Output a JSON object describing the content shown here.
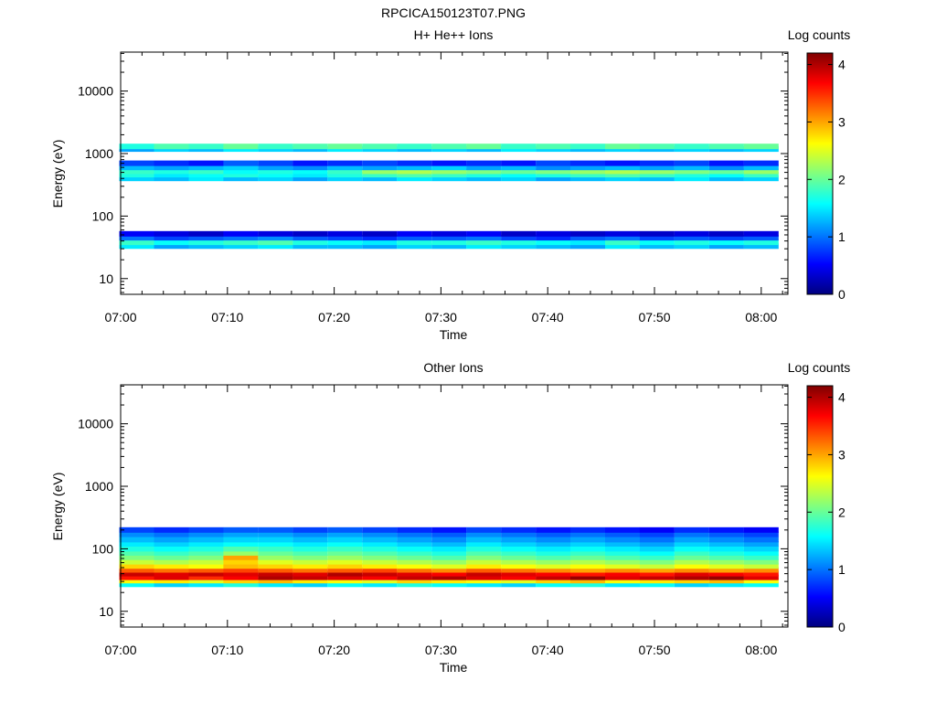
{
  "figure_title": "RPCICA150123T07.PNG",
  "chart_data": [
    {
      "type": "heatmap",
      "title": "H+ He++ Ions",
      "xlabel": "Time",
      "ylabel": "Energy (eV)",
      "colorbar_label": "Log counts",
      "y_scale": "log",
      "ylim": [
        5.6,
        42000
      ],
      "x_range": [
        "07:00:00",
        "08:02:30"
      ],
      "xticks": [
        "07:00",
        "07:10",
        "07:20",
        "07:30",
        "07:40",
        "07:50",
        "08:00"
      ],
      "yticks": [
        10,
        100,
        1000,
        10000
      ],
      "yticklabels": [
        "10",
        "100",
        "1000",
        "10000"
      ],
      "colorbar_range": [
        0,
        4.2
      ],
      "colorbar_ticks": [
        0,
        1,
        2,
        3,
        4
      ],
      "colormap": "jet",
      "time_bins": [
        "07:01:30",
        "07:04:45",
        "07:08:00",
        "07:11:15",
        "07:14:30",
        "07:17:45",
        "07:21:00",
        "07:24:15",
        "07:27:30",
        "07:30:45",
        "07:34:00",
        "07:37:15",
        "07:40:30",
        "07:43:45",
        "07:47:00",
        "07:50:15",
        "07:53:30",
        "07:56:45",
        "08:00:00"
      ],
      "energy_channels": [
        {
          "e": 33,
          "logc": [
            1.5,
            1.2,
            1.3,
            1.4,
            1.5,
            1.3,
            1.3,
            1.2,
            1.4,
            1.3,
            1.5,
            1.4,
            1.3,
            1.2,
            1.5,
            1.3,
            1.4,
            1.2,
            1.3
          ]
        },
        {
          "e": 38,
          "logc": [
            1.8,
            1.6,
            1.7,
            1.8,
            1.9,
            1.7,
            1.6,
            1.5,
            1.7,
            1.7,
            1.8,
            1.7,
            1.6,
            1.5,
            1.8,
            1.6,
            1.7,
            1.6,
            1.7
          ]
        },
        {
          "e": 45,
          "logc": [
            1.0,
            0.8,
            0.9,
            1.0,
            1.1,
            0.9,
            0.8,
            0.7,
            0.9,
            0.9,
            1.0,
            0.8,
            0.7,
            0.9,
            1.0,
            0.8,
            0.9,
            0.8,
            0.9
          ]
        },
        {
          "e": 52,
          "logc": [
            0.5,
            0.4,
            0.3,
            0.5,
            0.4,
            0.3,
            0.4,
            0.3,
            0.5,
            0.4,
            0.5,
            0.3,
            0.4,
            0.3,
            0.4,
            0.3,
            0.4,
            0.3,
            0.4
          ]
        },
        {
          "e": 400,
          "logc": [
            1.4,
            1.3,
            1.5,
            1.3,
            1.4,
            1.2,
            1.4,
            1.3,
            1.5,
            1.4,
            1.3,
            1.4,
            1.2,
            1.3,
            1.4,
            1.3,
            1.5,
            1.3,
            1.4
          ]
        },
        {
          "e": 460,
          "logc": [
            1.7,
            1.5,
            1.6,
            1.7,
            1.6,
            1.5,
            1.7,
            1.8,
            1.9,
            1.8,
            1.7,
            1.6,
            1.7,
            1.8,
            1.9,
            1.8,
            1.7,
            1.6,
            1.8
          ]
        },
        {
          "e": 520,
          "logc": [
            1.8,
            1.7,
            1.8,
            1.6,
            1.7,
            1.6,
            1.8,
            2.2,
            2.3,
            2.2,
            2.1,
            2.0,
            2.1,
            2.2,
            2.3,
            2.2,
            2.1,
            2.0,
            2.2
          ]
        },
        {
          "e": 600,
          "logc": [
            1.3,
            1.2,
            1.3,
            1.4,
            1.2,
            1.1,
            1.3,
            1.2,
            1.3,
            1.4,
            1.2,
            1.3,
            1.1,
            1.2,
            1.3,
            1.2,
            1.3,
            1.1,
            1.3
          ]
        },
        {
          "e": 700,
          "logc": [
            0.8,
            0.7,
            0.6,
            0.9,
            0.8,
            0.6,
            0.7,
            0.8,
            0.7,
            0.6,
            0.7,
            0.6,
            0.8,
            0.7,
            0.6,
            0.7,
            0.8,
            0.6,
            0.7
          ]
        },
        {
          "e": 1180,
          "logc": [
            1.2,
            1.4,
            1.3,
            1.5,
            1.4,
            1.3,
            1.5,
            1.4,
            1.3,
            1.4,
            1.3,
            1.5,
            1.4,
            1.3,
            1.4,
            1.3,
            1.4,
            1.3,
            1.4
          ]
        },
        {
          "e": 1300,
          "logc": [
            1.7,
            1.9,
            1.8,
            2.0,
            1.8,
            1.9,
            2.0,
            1.9,
            1.8,
            1.9,
            2.0,
            1.8,
            1.9,
            1.8,
            2.0,
            1.9,
            1.8,
            1.9,
            2.0
          ]
        }
      ]
    },
    {
      "type": "heatmap",
      "title": "Other Ions",
      "xlabel": "Time",
      "ylabel": "Energy (eV)",
      "colorbar_label": "Log counts",
      "y_scale": "log",
      "ylim": [
        5.6,
        42000
      ],
      "x_range": [
        "07:00:00",
        "08:02:30"
      ],
      "xticks": [
        "07:00",
        "07:10",
        "07:20",
        "07:30",
        "07:40",
        "07:50",
        "08:00"
      ],
      "yticks": [
        10,
        100,
        1000,
        10000
      ],
      "yticklabels": [
        "10",
        "100",
        "1000",
        "10000"
      ],
      "colorbar_range": [
        0,
        4.2
      ],
      "colorbar_ticks": [
        0,
        1,
        2,
        3,
        4
      ],
      "colormap": "jet",
      "time_bins": [
        "07:01:30",
        "07:04:45",
        "07:08:00",
        "07:11:15",
        "07:14:30",
        "07:17:45",
        "07:21:00",
        "07:24:15",
        "07:27:30",
        "07:30:45",
        "07:34:00",
        "07:37:15",
        "07:40:30",
        "07:43:45",
        "07:47:00",
        "07:50:15",
        "07:53:30",
        "07:56:45",
        "08:00:00"
      ],
      "energy_channels": [
        {
          "e": 27,
          "logc": [
            1.6,
            1.4,
            1.5,
            1.7,
            1.5,
            1.4,
            1.6,
            1.5,
            1.7,
            1.6,
            1.5,
            1.4,
            1.6,
            1.7,
            1.5,
            1.6,
            1.4,
            1.5,
            1.6
          ]
        },
        {
          "e": 31,
          "logc": [
            2.6,
            2.7,
            2.5,
            2.8,
            2.9,
            2.7,
            2.6,
            2.5,
            2.8,
            2.7,
            2.6,
            2.5,
            2.8,
            2.9,
            2.6,
            2.7,
            2.8,
            2.9,
            2.6
          ]
        },
        {
          "e": 35,
          "logc": [
            3.6,
            3.8,
            3.5,
            3.7,
            4.0,
            3.9,
            3.8,
            3.7,
            3.9,
            4.0,
            3.8,
            3.7,
            3.9,
            4.1,
            3.8,
            3.9,
            4.0,
            4.1,
            3.8
          ]
        },
        {
          "e": 40,
          "logc": [
            3.9,
            3.8,
            3.9,
            3.8,
            3.9,
            3.8,
            4.0,
            3.9,
            3.8,
            3.7,
            3.9,
            3.8,
            3.7,
            3.6,
            3.7,
            3.6,
            3.8,
            3.7,
            3.6
          ]
        },
        {
          "e": 46,
          "logc": [
            3.3,
            3.2,
            3.3,
            3.4,
            3.3,
            3.2,
            3.3,
            3.4,
            3.2,
            3.1,
            3.3,
            3.2,
            3.1,
            3.0,
            3.1,
            3.0,
            3.1,
            3.0,
            3.1
          ]
        },
        {
          "e": 53,
          "logc": [
            2.8,
            2.7,
            2.6,
            2.9,
            2.8,
            2.7,
            2.8,
            2.7,
            2.6,
            2.5,
            2.7,
            2.6,
            2.5,
            2.6,
            2.5,
            2.4,
            2.6,
            2.5,
            2.4
          ]
        },
        {
          "e": 62,
          "logc": [
            2.4,
            2.3,
            2.4,
            2.8,
            2.5,
            2.4,
            2.5,
            2.4,
            2.3,
            2.2,
            2.4,
            2.3,
            2.2,
            2.3,
            2.2,
            2.1,
            2.3,
            2.2,
            2.1
          ]
        },
        {
          "e": 73,
          "logc": [
            2.1,
            2.0,
            2.1,
            3.0,
            2.2,
            2.1,
            2.2,
            2.1,
            2.0,
            1.9,
            2.1,
            2.0,
            1.9,
            2.0,
            1.9,
            1.8,
            2.0,
            1.9,
            1.8
          ]
        },
        {
          "e": 86,
          "logc": [
            1.9,
            1.8,
            1.9,
            2.2,
            2.0,
            1.9,
            2.0,
            1.9,
            1.8,
            1.7,
            1.9,
            1.8,
            1.7,
            1.8,
            1.7,
            1.6,
            1.8,
            1.7,
            1.6
          ]
        },
        {
          "e": 100,
          "logc": [
            1.7,
            1.6,
            1.7,
            1.9,
            1.8,
            1.7,
            1.8,
            1.7,
            1.6,
            1.5,
            1.7,
            1.6,
            1.5,
            1.6,
            1.5,
            1.4,
            1.6,
            1.5,
            1.4
          ]
        },
        {
          "e": 120,
          "logc": [
            1.5,
            1.4,
            1.5,
            1.6,
            1.6,
            1.5,
            1.6,
            1.5,
            1.4,
            1.3,
            1.5,
            1.4,
            1.3,
            1.4,
            1.3,
            1.2,
            1.4,
            1.3,
            1.2
          ]
        },
        {
          "e": 140,
          "logc": [
            1.3,
            1.2,
            1.3,
            1.4,
            1.4,
            1.3,
            1.4,
            1.3,
            1.2,
            1.1,
            1.3,
            1.2,
            1.1,
            1.2,
            1.1,
            1.0,
            1.2,
            1.1,
            1.0
          ]
        },
        {
          "e": 170,
          "logc": [
            1.1,
            1.0,
            1.1,
            1.2,
            1.2,
            1.1,
            1.2,
            1.1,
            1.0,
            0.9,
            1.1,
            1.0,
            0.9,
            1.0,
            0.9,
            0.8,
            1.0,
            0.9,
            0.8
          ]
        },
        {
          "e": 200,
          "logc": [
            0.8,
            0.7,
            0.8,
            0.9,
            0.9,
            0.8,
            0.9,
            0.8,
            0.7,
            0.6,
            0.8,
            0.7,
            0.6,
            0.7,
            0.6,
            0.5,
            0.7,
            0.6,
            0.5
          ]
        }
      ]
    }
  ]
}
